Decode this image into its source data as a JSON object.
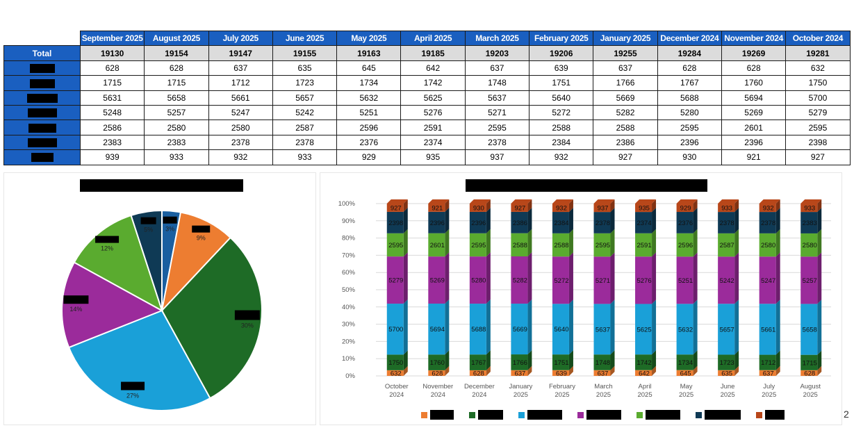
{
  "table": {
    "months": [
      "September 2025",
      "August 2025",
      "July 2025",
      "June 2025",
      "May 2025",
      "April 2025",
      "March 2025",
      "February 2025",
      "January 2025",
      "December 2024",
      "November 2024",
      "October 2024"
    ],
    "total_label": "Total",
    "totals": [
      19130,
      19154,
      19147,
      19155,
      19163,
      19185,
      19203,
      19206,
      19255,
      19284,
      19269,
      19281
    ],
    "rows": [
      {
        "values": [
          628,
          628,
          637,
          635,
          645,
          642,
          637,
          639,
          637,
          628,
          628,
          632
        ]
      },
      {
        "values": [
          1715,
          1715,
          1712,
          1723,
          1734,
          1742,
          1748,
          1751,
          1766,
          1767,
          1760,
          1750
        ]
      },
      {
        "values": [
          5631,
          5658,
          5661,
          5657,
          5632,
          5625,
          5637,
          5640,
          5669,
          5688,
          5694,
          5700
        ]
      },
      {
        "values": [
          5248,
          5257,
          5247,
          5242,
          5251,
          5276,
          5271,
          5272,
          5282,
          5280,
          5269,
          5279
        ]
      },
      {
        "values": [
          2586,
          2580,
          2580,
          2587,
          2596,
          2591,
          2595,
          2588,
          2588,
          2595,
          2601,
          2595
        ]
      },
      {
        "values": [
          2383,
          2383,
          2378,
          2378,
          2376,
          2374,
          2378,
          2384,
          2386,
          2396,
          2396,
          2398
        ]
      },
      {
        "values": [
          939,
          933,
          932,
          933,
          929,
          935,
          937,
          932,
          927,
          930,
          921,
          927
        ]
      }
    ]
  },
  "colors": {
    "header_blue": "#1a5fc0",
    "series": [
      "#ed7d31",
      "#1e6b26",
      "#1aa0d8",
      "#9b2b9b",
      "#5aab2f",
      "#0f3a55",
      "#b8471a"
    ]
  },
  "chart_data": [
    {
      "type": "pie",
      "title": "",
      "slices": [
        {
          "label": "5%",
          "value": 5
        },
        {
          "label": "3%",
          "value": 3
        },
        {
          "label": "9%",
          "value": 9
        },
        {
          "label": "30%",
          "value": 30
        },
        {
          "label": "27%",
          "value": 27
        },
        {
          "label": "14%",
          "value": 14
        },
        {
          "label": "12%",
          "value": 12
        }
      ],
      "slice_colors": [
        "#0f3a55",
        "#1a5fa0",
        "#ed7d31",
        "#1e6b26",
        "#1aa0d8",
        "#9b2b9b",
        "#5aab2f"
      ]
    },
    {
      "type": "bar",
      "stacked": "percent",
      "title": "",
      "x": [
        "October 2024",
        "November 2024",
        "December 2024",
        "January 2025",
        "February 2025",
        "March 2025",
        "April 2025",
        "May 2025",
        "June 2025",
        "July 2025",
        "August 2025"
      ],
      "ylim": [
        0,
        100
      ],
      "yticks": [
        "0%",
        "10%",
        "20%",
        "30%",
        "40%",
        "50%",
        "60%",
        "70%",
        "80%",
        "90%",
        "100%"
      ],
      "grid": true,
      "legend_position": "bottom",
      "series": [
        {
          "values": [
            632,
            628,
            628,
            637,
            639,
            637,
            642,
            645,
            635,
            637,
            628
          ]
        },
        {
          "values": [
            1750,
            1760,
            1767,
            1766,
            1751,
            1748,
            1742,
            1734,
            1723,
            1712,
            1715
          ]
        },
        {
          "values": [
            5700,
            5694,
            5688,
            5669,
            5640,
            5637,
            5625,
            5632,
            5657,
            5661,
            5658
          ]
        },
        {
          "values": [
            5279,
            5269,
            5280,
            5282,
            5272,
            5271,
            5276,
            5251,
            5242,
            5247,
            5257
          ]
        },
        {
          "values": [
            2595,
            2601,
            2595,
            2588,
            2588,
            2595,
            2591,
            2596,
            2587,
            2580,
            2580
          ]
        },
        {
          "values": [
            2398,
            2396,
            2396,
            2386,
            2384,
            2378,
            2374,
            2376,
            2378,
            2378,
            2383
          ]
        },
        {
          "values": [
            927,
            921,
            930,
            927,
            932,
            937,
            935,
            929,
            933,
            932,
            933
          ]
        }
      ]
    }
  ],
  "page_number": "2"
}
